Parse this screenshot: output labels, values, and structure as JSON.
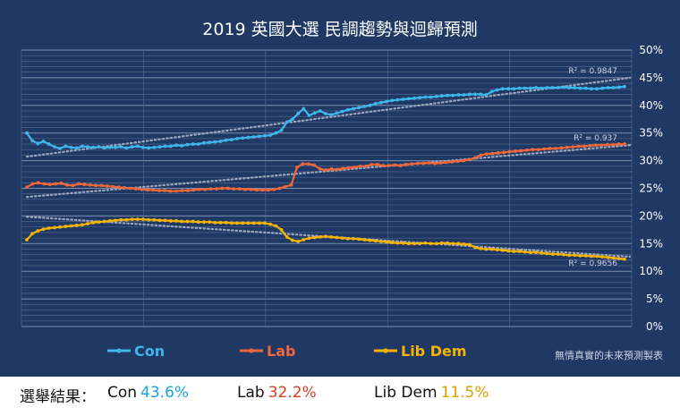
{
  "chart_data": {
    "type": "line",
    "title": "2019  英國大選  民調趨勢與迴歸預測",
    "y_ticks": [
      "0%",
      "5%",
      "10%",
      "15%",
      "20%",
      "25%",
      "30%",
      "35%",
      "40%",
      "45%",
      "50%"
    ],
    "ylim": [
      0,
      50
    ],
    "grid": true,
    "legend_position": "bottom",
    "note": "無情真實的未來預測製表",
    "series": [
      {
        "name": "Con",
        "color": "#3fb6ea",
        "r2": "R² = 0.9847",
        "values": [
          35.0,
          33.6,
          33.1,
          33.5,
          33.0,
          32.5,
          32.2,
          32.6,
          32.4,
          32.3,
          32.6,
          32.5,
          32.4,
          32.5,
          32.3,
          32.4,
          32.4,
          32.5,
          32.3,
          32.5,
          32.6,
          32.4,
          32.3,
          32.4,
          32.5,
          32.6,
          32.6,
          32.8,
          32.7,
          32.9,
          33.0,
          33.0,
          33.2,
          33.3,
          33.4,
          33.5,
          33.7,
          33.8,
          34.0,
          34.1,
          34.2,
          34.3,
          34.4,
          34.5,
          34.6,
          35.0,
          35.5,
          37.0,
          37.5,
          38.5,
          39.4,
          38.2,
          38.6,
          39.0,
          38.5,
          38.3,
          38.6,
          38.9,
          39.2,
          39.4,
          39.6,
          39.8,
          40.0,
          40.3,
          40.5,
          40.7,
          40.9,
          41.0,
          41.1,
          41.2,
          41.3,
          41.4,
          41.5,
          41.5,
          41.6,
          41.7,
          41.8,
          41.8,
          41.9,
          41.9,
          42.0,
          42.0,
          42.0,
          41.9,
          42.5,
          42.8,
          43.0,
          43.0,
          43.0,
          43.1,
          43.1,
          43.1,
          43.2,
          43.1,
          43.2,
          43.2,
          43.2,
          43.3,
          43.2,
          43.2,
          43.1,
          43.1,
          43.0,
          43.0,
          43.1,
          43.2,
          43.2,
          43.3,
          43.4
        ]
      },
      {
        "name": "Lab",
        "color": "#f0673a",
        "r2": "R² = 0.937",
        "values": [
          25.2,
          25.8,
          26.0,
          25.8,
          25.7,
          25.8,
          25.9,
          25.6,
          25.5,
          25.8,
          25.7,
          25.6,
          25.5,
          25.5,
          25.4,
          25.3,
          25.2,
          25.1,
          25.0,
          24.9,
          24.8,
          24.7,
          24.7,
          24.6,
          24.6,
          24.5,
          24.5,
          24.6,
          24.6,
          24.7,
          24.8,
          24.8,
          24.9,
          24.9,
          25.0,
          25.0,
          24.9,
          24.9,
          24.8,
          24.8,
          24.7,
          24.7,
          24.7,
          24.8,
          25.0,
          25.3,
          25.6,
          28.8,
          29.4,
          29.4,
          29.2,
          28.5,
          28.3,
          28.5,
          28.4,
          28.6,
          28.7,
          28.8,
          29.0,
          29.0,
          29.3,
          29.3,
          29.1,
          29.1,
          29.2,
          29.1,
          29.3,
          29.4,
          29.5,
          29.5,
          29.6,
          29.5,
          29.6,
          29.7,
          29.8,
          29.9,
          30.0,
          30.2,
          30.5,
          31.0,
          31.2,
          31.3,
          31.4,
          31.5,
          31.6,
          31.7,
          31.8,
          31.9,
          32.0,
          32.0,
          32.1,
          32.2,
          32.2,
          32.3,
          32.4,
          32.5,
          32.6,
          32.6,
          32.7,
          32.8,
          32.8,
          32.9,
          32.9,
          33.0,
          33.0
        ]
      },
      {
        "name": "Lib Dem",
        "color": "#f5b400",
        "r2": "R² = 0.9656",
        "values": [
          15.7,
          16.8,
          17.3,
          17.6,
          17.8,
          17.9,
          18.0,
          18.1,
          18.2,
          18.3,
          18.4,
          18.6,
          18.8,
          18.9,
          19.0,
          19.1,
          19.2,
          19.3,
          19.3,
          19.4,
          19.4,
          19.4,
          19.3,
          19.3,
          19.2,
          19.2,
          19.1,
          19.1,
          19.0,
          19.0,
          19.0,
          18.9,
          18.9,
          18.9,
          18.8,
          18.8,
          18.8,
          18.7,
          18.7,
          18.7,
          18.7,
          18.7,
          18.7,
          18.7,
          18.5,
          18.2,
          17.5,
          16.2,
          15.6,
          15.4,
          15.7,
          16.0,
          16.1,
          16.2,
          16.3,
          16.2,
          16.1,
          16.0,
          15.9,
          15.9,
          15.8,
          15.7,
          15.6,
          15.5,
          15.4,
          15.3,
          15.2,
          15.1,
          15.1,
          15.0,
          15.0,
          15.0,
          15.1,
          15.0,
          15.0,
          15.1,
          15.1,
          15.0,
          15.0,
          14.9,
          14.8,
          14.3,
          14.1,
          14.0,
          14.0,
          13.9,
          13.8,
          13.7,
          13.6,
          13.6,
          13.5,
          13.4,
          13.4,
          13.3,
          13.2,
          13.1,
          13.1,
          13.0,
          12.9,
          12.9,
          12.8,
          12.8,
          12.7,
          12.7,
          12.6,
          12.5,
          12.4,
          12.3,
          12.2
        ]
      }
    ]
  },
  "footer": {
    "label": "選舉結果：",
    "results": [
      {
        "name": "Con",
        "value": "43.6%",
        "color": "#1aa3e0"
      },
      {
        "name": "Lab",
        "value": "32.2%",
        "color": "#e03a1e"
      },
      {
        "name": "Lib Dem",
        "value": "11.5%",
        "color": "#e0a000"
      }
    ]
  }
}
